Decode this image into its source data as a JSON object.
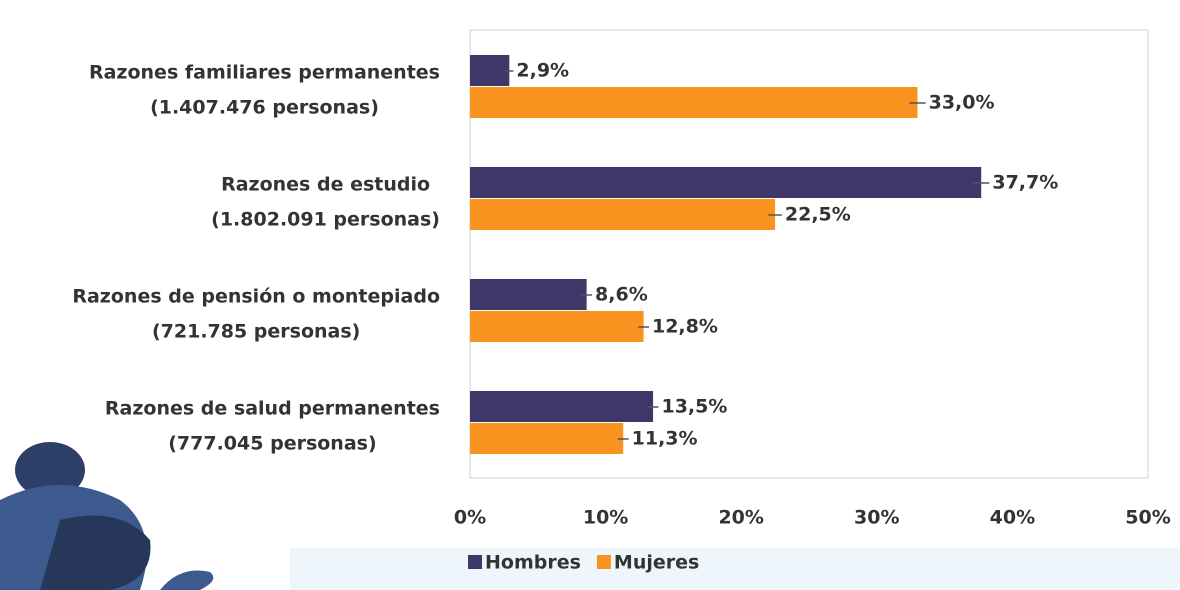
{
  "chart_data": {
    "type": "bar",
    "orientation": "horizontal",
    "categories": [
      "Razones familiares permanentes",
      "Razones de estudio",
      "Razones de pensión o montepiado",
      "Razones de salud permanentes"
    ],
    "category_sublabels": [
      "(1.407.476 personas)",
      "(1.802.091 personas)",
      "(721.785 personas)",
      "(777.045 personas)"
    ],
    "series": [
      {
        "name": "Hombres",
        "color": "#3f3768",
        "values": [
          2.9,
          37.7,
          8.6,
          13.5
        ],
        "value_labels": [
          "2,9%",
          "37,7%",
          "8,6%",
          "13,5%"
        ],
        "errors": [
          0.3,
          0.6,
          0.4,
          0.4
        ]
      },
      {
        "name": "Mujeres",
        "color": "#f7931e",
        "values": [
          33.0,
          22.5,
          12.8,
          11.3
        ],
        "value_labels": [
          "33,0%",
          "22,5%",
          "12,8%",
          "11,3%"
        ],
        "errors": [
          0.6,
          0.5,
          0.4,
          0.4
        ]
      }
    ],
    "xlim": [
      0,
      50
    ],
    "xticks": [
      {
        "value": 0,
        "label": "0%"
      },
      {
        "value": 10,
        "label": "10%"
      },
      {
        "value": 20,
        "label": "20%"
      },
      {
        "value": 30,
        "label": "30%"
      },
      {
        "value": 40,
        "label": "40%"
      },
      {
        "value": 50,
        "label": "50%"
      }
    ],
    "grid": false,
    "legend": "bottom"
  }
}
